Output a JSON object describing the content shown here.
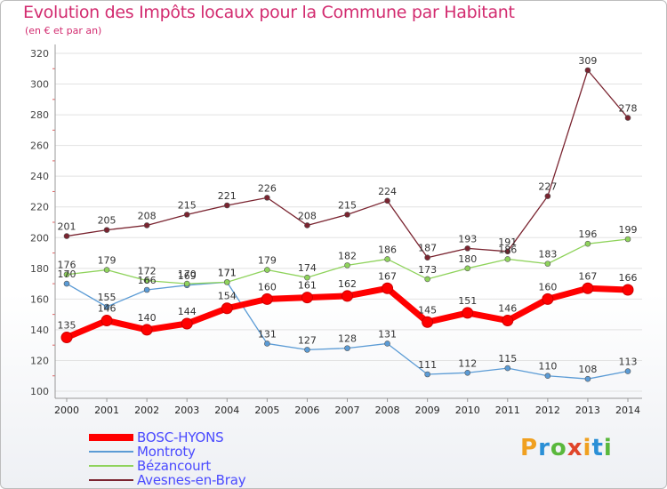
{
  "title": "Evolution des Impôts locaux pour la Commune par Habitant",
  "subtitle": "(en € et par an)",
  "logo": {
    "text": "Proxiti",
    "letter_colors": [
      "#f0a020",
      "#2a8fd6",
      "#5ab83c",
      "#e0452a",
      "#f0a020",
      "#2a8fd6",
      "#5ab83c"
    ]
  },
  "chart_data": {
    "type": "line",
    "x": [
      "2000",
      "2001",
      "2002",
      "2003",
      "2004",
      "2005",
      "2006",
      "2007",
      "2008",
      "2009",
      "2010",
      "2011",
      "2012",
      "2013",
      "2014"
    ],
    "ylim": [
      100,
      320
    ],
    "yticks": [
      100,
      120,
      140,
      160,
      180,
      200,
      220,
      240,
      260,
      280,
      300,
      320
    ],
    "grid": true,
    "legend_position": "bottom-left",
    "series": [
      {
        "name": "BOSC-HYONS",
        "color": "#ff0000",
        "emphasis": true,
        "values": [
          135,
          146,
          140,
          144,
          154,
          160,
          161,
          162,
          167,
          145,
          151,
          146,
          160,
          167,
          166
        ]
      },
      {
        "name": "Montroty",
        "color": "#5b9bd5",
        "values": [
          170,
          155,
          166,
          169,
          171,
          131,
          127,
          128,
          131,
          111,
          112,
          115,
          110,
          108,
          113
        ]
      },
      {
        "name": "Bézancourt",
        "color": "#8fd35c",
        "values": [
          176,
          179,
          172,
          170,
          171,
          179,
          174,
          182,
          186,
          173,
          180,
          186,
          183,
          196,
          199
        ]
      },
      {
        "name": "Avesnes-en-Bray",
        "color": "#7a2430",
        "values": [
          201,
          205,
          208,
          215,
          221,
          226,
          208,
          215,
          224,
          187,
          193,
          191,
          227,
          309,
          278
        ]
      }
    ]
  }
}
